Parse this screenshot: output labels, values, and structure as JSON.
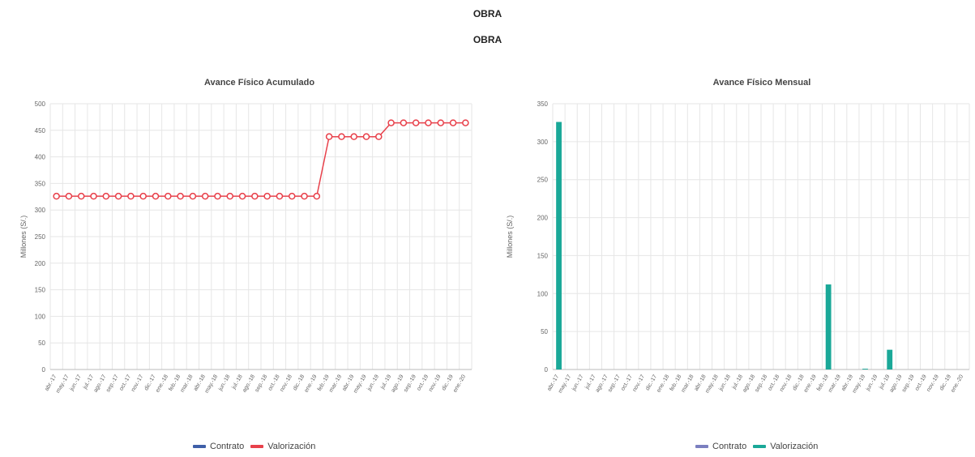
{
  "page": {
    "title_primary": "OBRA",
    "title_secondary": "OBRA"
  },
  "charts": [
    {
      "title": "Avance Físico Acumulado",
      "ylabel": "Millones (S/.)",
      "legend": [
        "Contrato",
        "Valorización"
      ]
    },
    {
      "title": "Avance Físico Mensual",
      "ylabel": "Millones (S/.)",
      "legend": [
        "Contrato",
        "Valorización"
      ]
    }
  ],
  "colors": {
    "contrato": "#3f5fa8",
    "valorizacion_line": "#e8414b",
    "contrato_2": "#7b7fc0",
    "valorizacion_bar": "#1aa898",
    "grid": "#e6e6e6"
  },
  "chart_data": [
    {
      "type": "line",
      "title": "Avance Físico Acumulado",
      "xlabel": "",
      "ylabel": "Millones (S/.)",
      "ylim": [
        0,
        500
      ],
      "yticks": [
        0,
        50,
        100,
        150,
        200,
        250,
        300,
        350,
        400,
        450,
        500
      ],
      "categories": [
        "abr.-17",
        "may.-17",
        "jun.-17",
        "jul.-17",
        "ago.-17",
        "sep.-17",
        "oct.-17",
        "nov.-17",
        "dic.-17",
        "ene.-18",
        "feb.-18",
        "mar.-18",
        "abr.-18",
        "may.-18",
        "jun.-18",
        "jul.-18",
        "ago.-18",
        "sep.-18",
        "oct.-18",
        "nov.-18",
        "dic.-18",
        "ene.-19",
        "feb.-19",
        "mar.-19",
        "abr.-19",
        "may.-19",
        "jun.-19",
        "jul.-19",
        "ago.-19",
        "sep.-19",
        "oct.-19",
        "nov.-19",
        "dic.-19",
        "ene.-20"
      ],
      "series": [
        {
          "name": "Valorización",
          "values": [
            326,
            326,
            326,
            326,
            326,
            326,
            326,
            326,
            326,
            326,
            326,
            326,
            326,
            326,
            326,
            326,
            326,
            326,
            326,
            326,
            326,
            326,
            438,
            438,
            438,
            438,
            438,
            464,
            464,
            464,
            464,
            464,
            464,
            464
          ]
        }
      ],
      "grid": true,
      "legend": "bottom-center"
    },
    {
      "type": "bar",
      "title": "Avance Físico Mensual",
      "xlabel": "",
      "ylabel": "Millones (S/.)",
      "ylim": [
        0,
        350
      ],
      "yticks": [
        0,
        50,
        100,
        150,
        200,
        250,
        300,
        350
      ],
      "categories": [
        "abr.-17",
        "may.-17",
        "jun.-17",
        "jul.-17",
        "ago.-17",
        "sep.-17",
        "oct.-17",
        "nov.-17",
        "dic.-17",
        "ene.-18",
        "feb.-18",
        "mar.-18",
        "abr.-18",
        "may.-18",
        "jun.-18",
        "jul.-18",
        "ago.-18",
        "sep.-18",
        "oct.-18",
        "nov.-18",
        "dic.-18",
        "ene.-19",
        "feb.-19",
        "mar.-19",
        "abr.-19",
        "may.-19",
        "jun.-19",
        "jul.-19",
        "ago.-19",
        "sep.-19",
        "oct.-19",
        "nov.-19",
        "dic.-19",
        "ene.-20"
      ],
      "series": [
        {
          "name": "Valorización",
          "values": [
            326,
            0,
            0,
            0,
            0,
            0,
            0,
            0,
            0,
            0,
            0,
            0,
            0,
            0,
            0,
            0,
            0,
            0,
            0,
            0,
            0,
            0,
            112,
            0,
            0,
            1,
            0,
            26,
            0,
            0,
            0,
            0,
            0,
            0
          ]
        }
      ],
      "grid": true,
      "legend": "bottom-center"
    }
  ]
}
